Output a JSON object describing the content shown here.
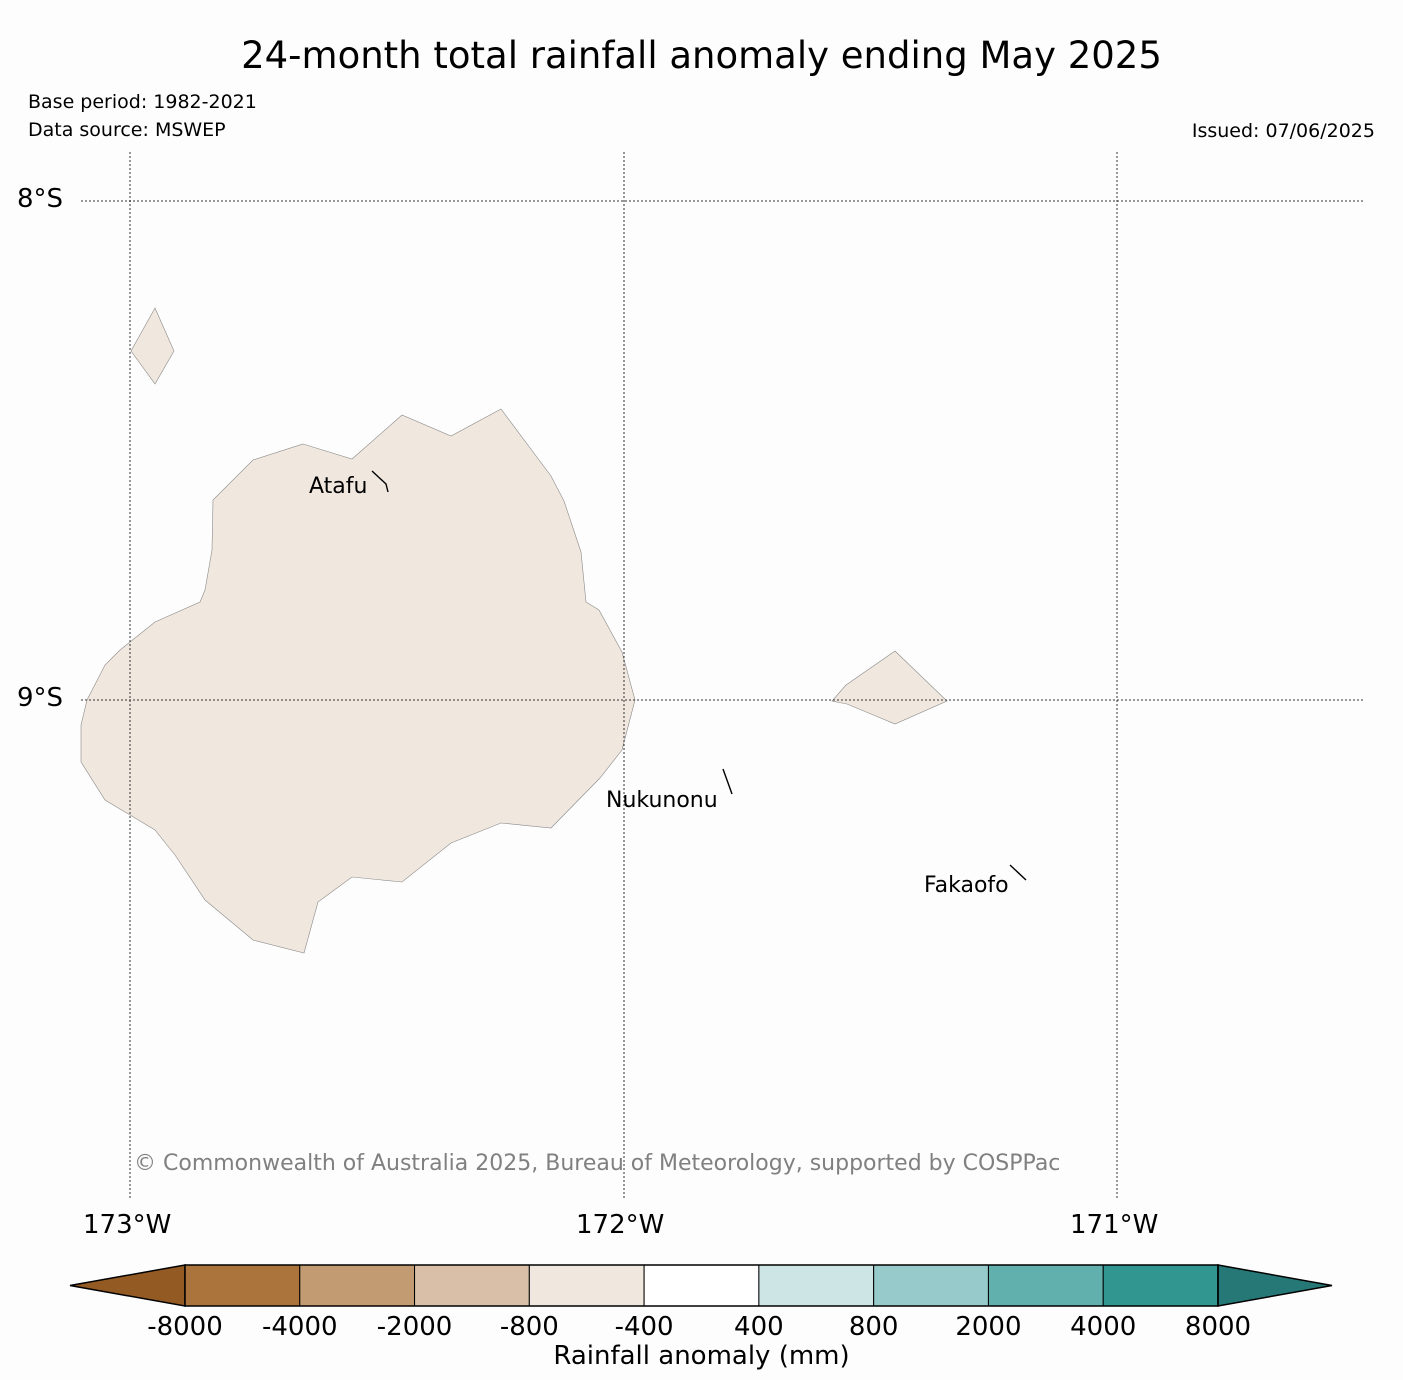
{
  "title": "24-month total rainfall anomaly ending May 2025",
  "base_period": "Base period: 1982-2021",
  "data_source": "Data source: MSWEP",
  "issued": "Issued: 07/06/2025",
  "latitude_labels": [
    "8°S",
    "9°S"
  ],
  "longitude_labels": [
    "173°W",
    "172°W",
    "171°W"
  ],
  "places": [
    "Atafu",
    "Nukunonu",
    "Fakaofo"
  ],
  "copyright": "© Commonwealth of Australia 2025, Bureau of Meteorology, supported by COSPPac",
  "land_fill_color": "#f0e7de",
  "land_anomaly_class": "-800 to -400",
  "colorbar": {
    "label": "Rainfall anomaly (mm)",
    "ticks": [
      "-8000",
      "-4000",
      "-2000",
      "-800",
      "-400",
      "400",
      "800",
      "2000",
      "4000",
      "8000"
    ],
    "colors": [
      "#935a24",
      "#ab743c",
      "#c39b72",
      "#d9bfa8",
      "#f0e7de",
      "#ffffff",
      "#cde5e5",
      "#97caca",
      "#62b0ae",
      "#31968f",
      "#267877"
    ]
  }
}
